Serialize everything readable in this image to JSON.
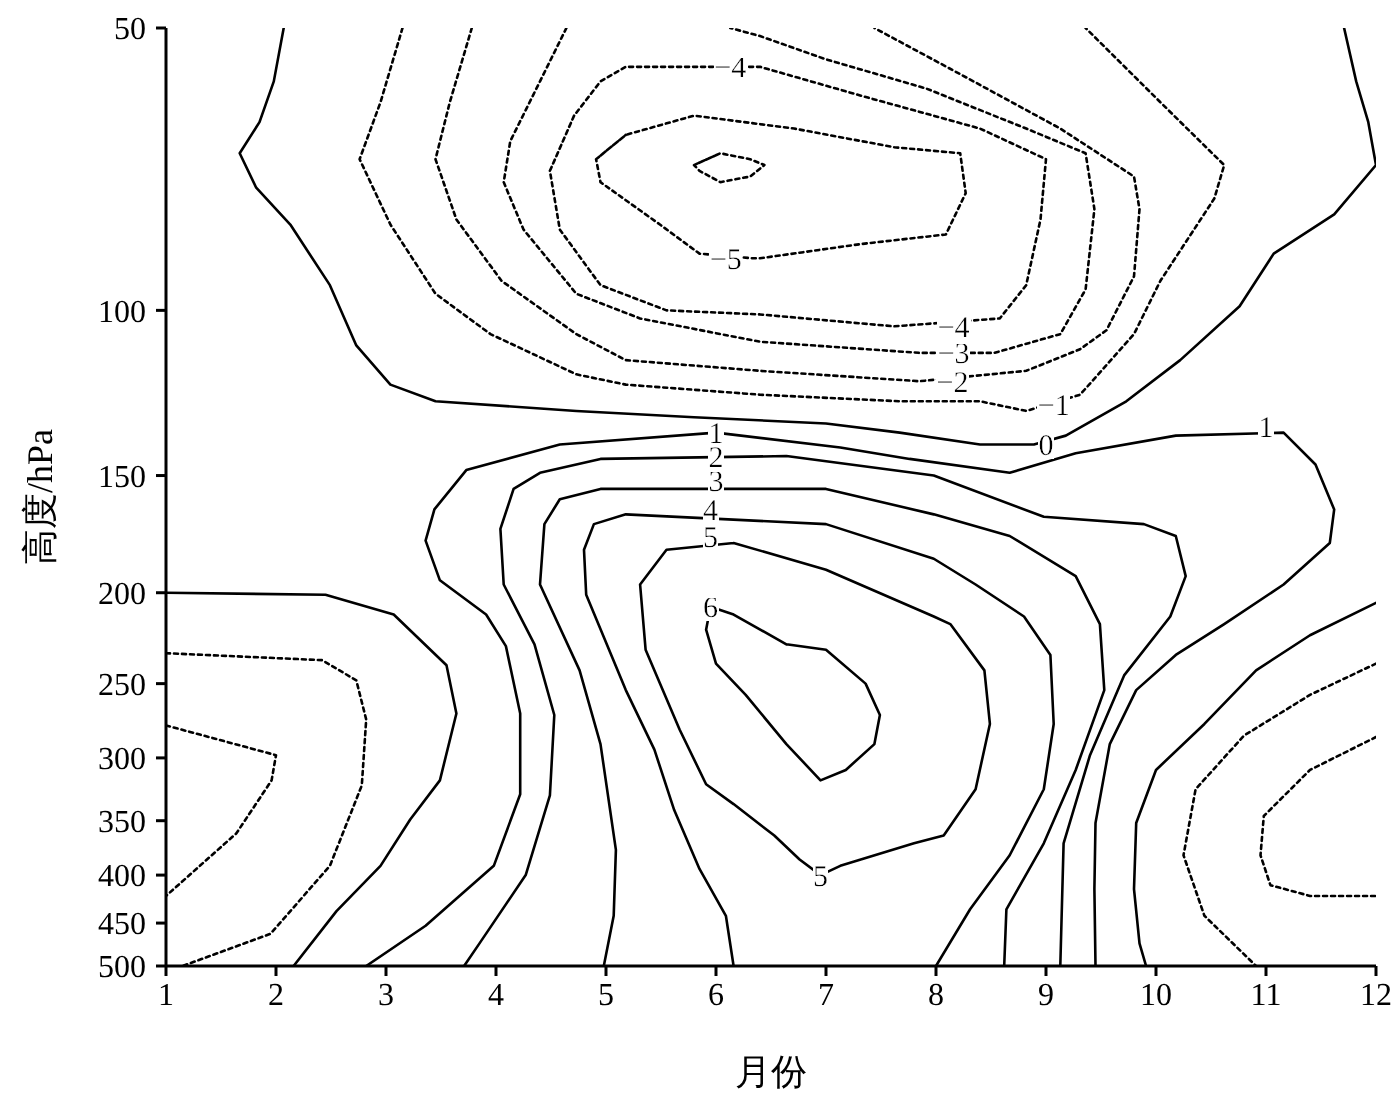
{
  "chart_data": {
    "type": "line",
    "xlabel": "月份",
    "ylabel": "高度/hPa",
    "xlim": [
      1,
      12
    ],
    "xticks": [
      1,
      2,
      3,
      4,
      5,
      6,
      7,
      8,
      9,
      10,
      11,
      12
    ],
    "ylim": [
      500,
      50
    ],
    "yticks": [
      50,
      100,
      150,
      200,
      250,
      300,
      350,
      400,
      450,
      500
    ],
    "log": "y",
    "series": [
      {
        "color": "#000000",
        "line_style": "solid",
        "x": [
          2.07,
          1.98,
          1.85,
          1.67,
          1.82,
          2.13,
          2.49,
          2.73,
          3.04,
          3.45,
          4.73,
          5.8,
          7.0,
          7.67,
          8.4,
          8.89,
          9.18,
          9.73,
          10.22,
          10.76,
          11.07,
          11.62,
          12,
          11.93,
          11.82,
          11.71
        ],
        "values": [
          50,
          57,
          63,
          68,
          74,
          81,
          94,
          109,
          120,
          125,
          128,
          130,
          132,
          135,
          139,
          139,
          136,
          125,
          113,
          99,
          87,
          79,
          70,
          63,
          57,
          50
        ]
      },
      {
        "color": "#000000",
        "line_style": "dotted",
        "x": [
          3.15,
          2.95,
          2.76,
          3.04,
          3.45,
          3.95,
          4.73,
          5.18,
          6.4,
          7.67,
          8.4,
          8.82,
          9.31,
          9.8,
          10.04,
          10.53,
          10.62,
          10.04,
          9.36
        ],
        "values": [
          50,
          60,
          69,
          81,
          96,
          106,
          117,
          120,
          123,
          125,
          125,
          128,
          123,
          106,
          93,
          76,
          70,
          60,
          50
        ]
      },
      {
        "color": "#000000",
        "line_style": "dotted",
        "x": [
          3.78,
          3.58,
          3.45,
          3.64,
          4.05,
          4.73,
          5.18,
          6.4,
          7.85,
          8.82,
          9.31,
          9.55,
          9.8,
          9.85,
          9.8,
          9.13,
          8.22,
          7.44
        ],
        "values": [
          50,
          60,
          69,
          80,
          93,
          106,
          113,
          116,
          119,
          116,
          110,
          105,
          92,
          78,
          72,
          64,
          56,
          50
        ]
      },
      {
        "color": "#000000",
        "line_style": "dotted",
        "x": [
          4.64,
          4.4,
          4.13,
          4.07,
          4.25,
          4.73,
          5.31,
          6.4,
          7.85,
          8.53,
          9.13,
          9.36,
          9.44,
          9.36,
          8.82,
          7.91,
          7.0,
          6.4,
          6.13
        ],
        "values": [
          50,
          57,
          66,
          73,
          82,
          96,
          102,
          108,
          111,
          111,
          106,
          95,
          78,
          68,
          64,
          58,
          54,
          51,
          50
        ]
      },
      {
        "color": "#000000",
        "line_style": "dotted",
        "x": [
          4.49,
          4.71,
          4.95,
          5.18,
          5.91,
          6.4,
          7.31,
          8.4,
          9.0,
          8.95,
          8.82,
          8.58,
          7.62,
          6.4,
          5.55,
          4.95,
          4.58,
          4.49,
          4.71
        ],
        "values": [
          71,
          62,
          57,
          55,
          55,
          55,
          59,
          64,
          69,
          80,
          94,
          102,
          104,
          101,
          100,
          94,
          82,
          71,
          62
        ]
      },
      {
        "color": "#000000",
        "line_style": "dotted",
        "x": [
          4.91,
          5.18,
          5.8,
          6.71,
          7.62,
          8.22,
          8.27,
          8.09,
          7.31,
          6.4,
          6.33,
          5.85,
          5.49,
          4.95,
          4.91,
          5.18
        ],
        "values": [
          69,
          65,
          62,
          64,
          67,
          68,
          75,
          83,
          85,
          88,
          88,
          87,
          81,
          73,
          69,
          65
        ]
      },
      {
        "color": "#000000",
        "line_style": "dotted",
        "x": [
          5.8,
          6.04,
          6.31,
          6.44,
          6.31,
          6.04,
          5.85,
          5.8,
          6.04
        ],
        "values": [
          70,
          68,
          69,
          70,
          72,
          73,
          71,
          70,
          68
        ]
      },
      {
        "color": "#000000",
        "line_style": "solid",
        "x": [
          1,
          2.45,
          3.07,
          3.55,
          3.64,
          3.49,
          3.22,
          2.95,
          2.55,
          2.16
        ],
        "values": [
          200,
          201,
          211,
          239,
          269,
          317,
          349,
          391,
          437,
          500
        ]
      },
      {
        "color": "#000000",
        "line_style": "dotted",
        "x": [
          1,
          2.42,
          2.73,
          2.82,
          2.78,
          2.49,
          1.95,
          1.15
        ],
        "values": [
          232,
          236,
          248,
          273,
          321,
          391,
          462,
          500
        ]
      },
      {
        "color": "#000000",
        "line_style": "dotted",
        "x": [
          1,
          2.0,
          1.96,
          1.64,
          1
        ],
        "values": [
          277,
          298,
          317,
          361,
          421
        ]
      },
      {
        "color": "#000000",
        "line_style": "solid",
        "x": [
          12,
          11.4,
          10.91,
          10.44,
          10.0,
          9.82,
          9.8,
          9.85,
          9.91
        ],
        "values": [
          205,
          222,
          242,
          276,
          309,
          352,
          414,
          473,
          500
        ]
      },
      {
        "color": "#000000",
        "line_style": "dotted",
        "x": [
          12,
          11.4,
          10.8,
          10.36,
          10.25,
          10.44,
          10.91
        ],
        "values": [
          238,
          257,
          284,
          324,
          381,
          442,
          500
        ]
      },
      {
        "color": "#000000",
        "line_style": "dotted",
        "x": [
          12,
          11.4,
          10.98,
          10.95,
          11.04,
          11.4,
          12
        ],
        "values": [
          285,
          309,
          346,
          381,
          410,
          421,
          421
        ]
      },
      {
        "color": "#000000",
        "line_style": "solid",
        "x": [
          2.82,
          3.36,
          3.98,
          4.22,
          4.22,
          4.09,
          3.91,
          3.49,
          3.36,
          3.44,
          3.73,
          4.58,
          6.0,
          7.13,
          7.76,
          8.67,
          9.27,
          10.18,
          11.16,
          11.45,
          11.62,
          11.58,
          11.16,
          10.62,
          10.18,
          9.82,
          9.58,
          9.45,
          9.44,
          9.45
        ],
        "values": [
          500,
          453,
          391,
          328,
          269,
          228,
          211,
          194,
          176,
          163,
          148,
          139,
          135,
          140,
          144,
          149,
          142,
          136,
          135,
          146,
          163,
          177,
          196,
          216,
          233,
          254,
          290,
          352,
          414,
          500
        ]
      },
      {
        "color": "#000000",
        "line_style": "solid",
        "x": [
          3.71,
          3.85,
          4.27,
          4.49,
          4.53,
          4.35,
          4.07,
          4.04,
          4.16,
          4.4,
          4.95,
          6.64,
          7.98,
          8.98,
          9.89,
          10.18,
          10.27,
          10.13,
          9.71,
          9.4,
          9.16,
          9.13
        ],
        "values": [
          500,
          473,
          400,
          329,
          270,
          227,
          196,
          171,
          155,
          149,
          144,
          143,
          150,
          166,
          169,
          174,
          192,
          212,
          245,
          298,
          370,
          500
        ]
      },
      {
        "color": "#000000",
        "line_style": "solid",
        "x": [
          4.98,
          5.07,
          5.09,
          4.95,
          4.76,
          4.4,
          4.44,
          4.58,
          4.95,
          7.0,
          7.98,
          8.67,
          9.27,
          9.49,
          9.53,
          9.27,
          8.98,
          8.64,
          8.62
        ],
        "values": [
          500,
          442,
          376,
          290,
          242,
          196,
          169,
          159,
          155,
          155,
          165,
          174,
          192,
          216,
          254,
          309,
          370,
          435,
          500
        ]
      },
      {
        "color": "#000000",
        "line_style": "solid",
        "x": [
          6.16,
          6.09,
          5.85,
          5.62,
          5.44,
          5.18,
          4.82,
          4.8,
          4.89,
          5.18,
          7.0,
          7.98,
          8.36,
          8.8,
          9.04,
          9.07,
          8.98,
          8.67,
          8.31,
          8.0
        ],
        "values": [
          500,
          442,
          394,
          341,
          294,
          254,
          201,
          180,
          169,
          165,
          169,
          184,
          196,
          212,
          233,
          276,
          324,
          381,
          435,
          500
        ]
      },
      {
        "color": "#000000",
        "line_style": "solid",
        "x": [
          6.16,
          7.0,
          7.98,
          8.13,
          8.44,
          8.49,
          8.36,
          8.07,
          7.8,
          7.13,
          6.95,
          6.76,
          6.53,
          6.16,
          5.91,
          5.67,
          5.36,
          5.31,
          5.55,
          6.16,
          7.0
        ],
        "values": [
          177,
          189,
          212,
          216,
          242,
          276,
          324,
          363,
          370,
          391,
          400,
          385,
          363,
          336,
          320,
          280,
          230,
          196,
          180,
          177,
          189
        ]
      },
      {
        "color": "#000000",
        "line_style": "solid",
        "x": [
          6.16,
          6.64,
          7.0,
          7.36,
          7.49,
          7.44,
          7.18,
          6.95,
          6.64,
          6.27,
          6.0,
          5.91,
          5.95,
          6.16,
          6.64
        ],
        "values": [
          211,
          227,
          230,
          250,
          270,
          290,
          309,
          317,
          290,
          257,
          238,
          219,
          207,
          211,
          227
        ]
      }
    ],
    "annotations": [
      {
        "text": "−4",
        "x": 6.13,
        "y": 55
      },
      {
        "text": "−5",
        "x": 6.09,
        "y": 88
      },
      {
        "text": "−4",
        "x": 8.16,
        "y": 104
      },
      {
        "text": "−3",
        "x": 8.16,
        "y": 111
      },
      {
        "text": "−2",
        "x": 8.15,
        "y": 119
      },
      {
        "text": "−1",
        "x": 9.07,
        "y": 126
      },
      {
        "text": "0",
        "x": 9.0,
        "y": 139
      },
      {
        "text": "1",
        "x": 11.0,
        "y": 133
      },
      {
        "text": "1",
        "x": 6.0,
        "y": 135
      },
      {
        "text": "2",
        "x": 6.0,
        "y": 143
      },
      {
        "text": "3",
        "x": 6.0,
        "y": 152
      },
      {
        "text": "4",
        "x": 5.95,
        "y": 163
      },
      {
        "text": "5",
        "x": 5.95,
        "y": 174
      },
      {
        "text": "6",
        "x": 5.95,
        "y": 207
      },
      {
        "text": "5",
        "x": 6.95,
        "y": 400
      }
    ]
  }
}
